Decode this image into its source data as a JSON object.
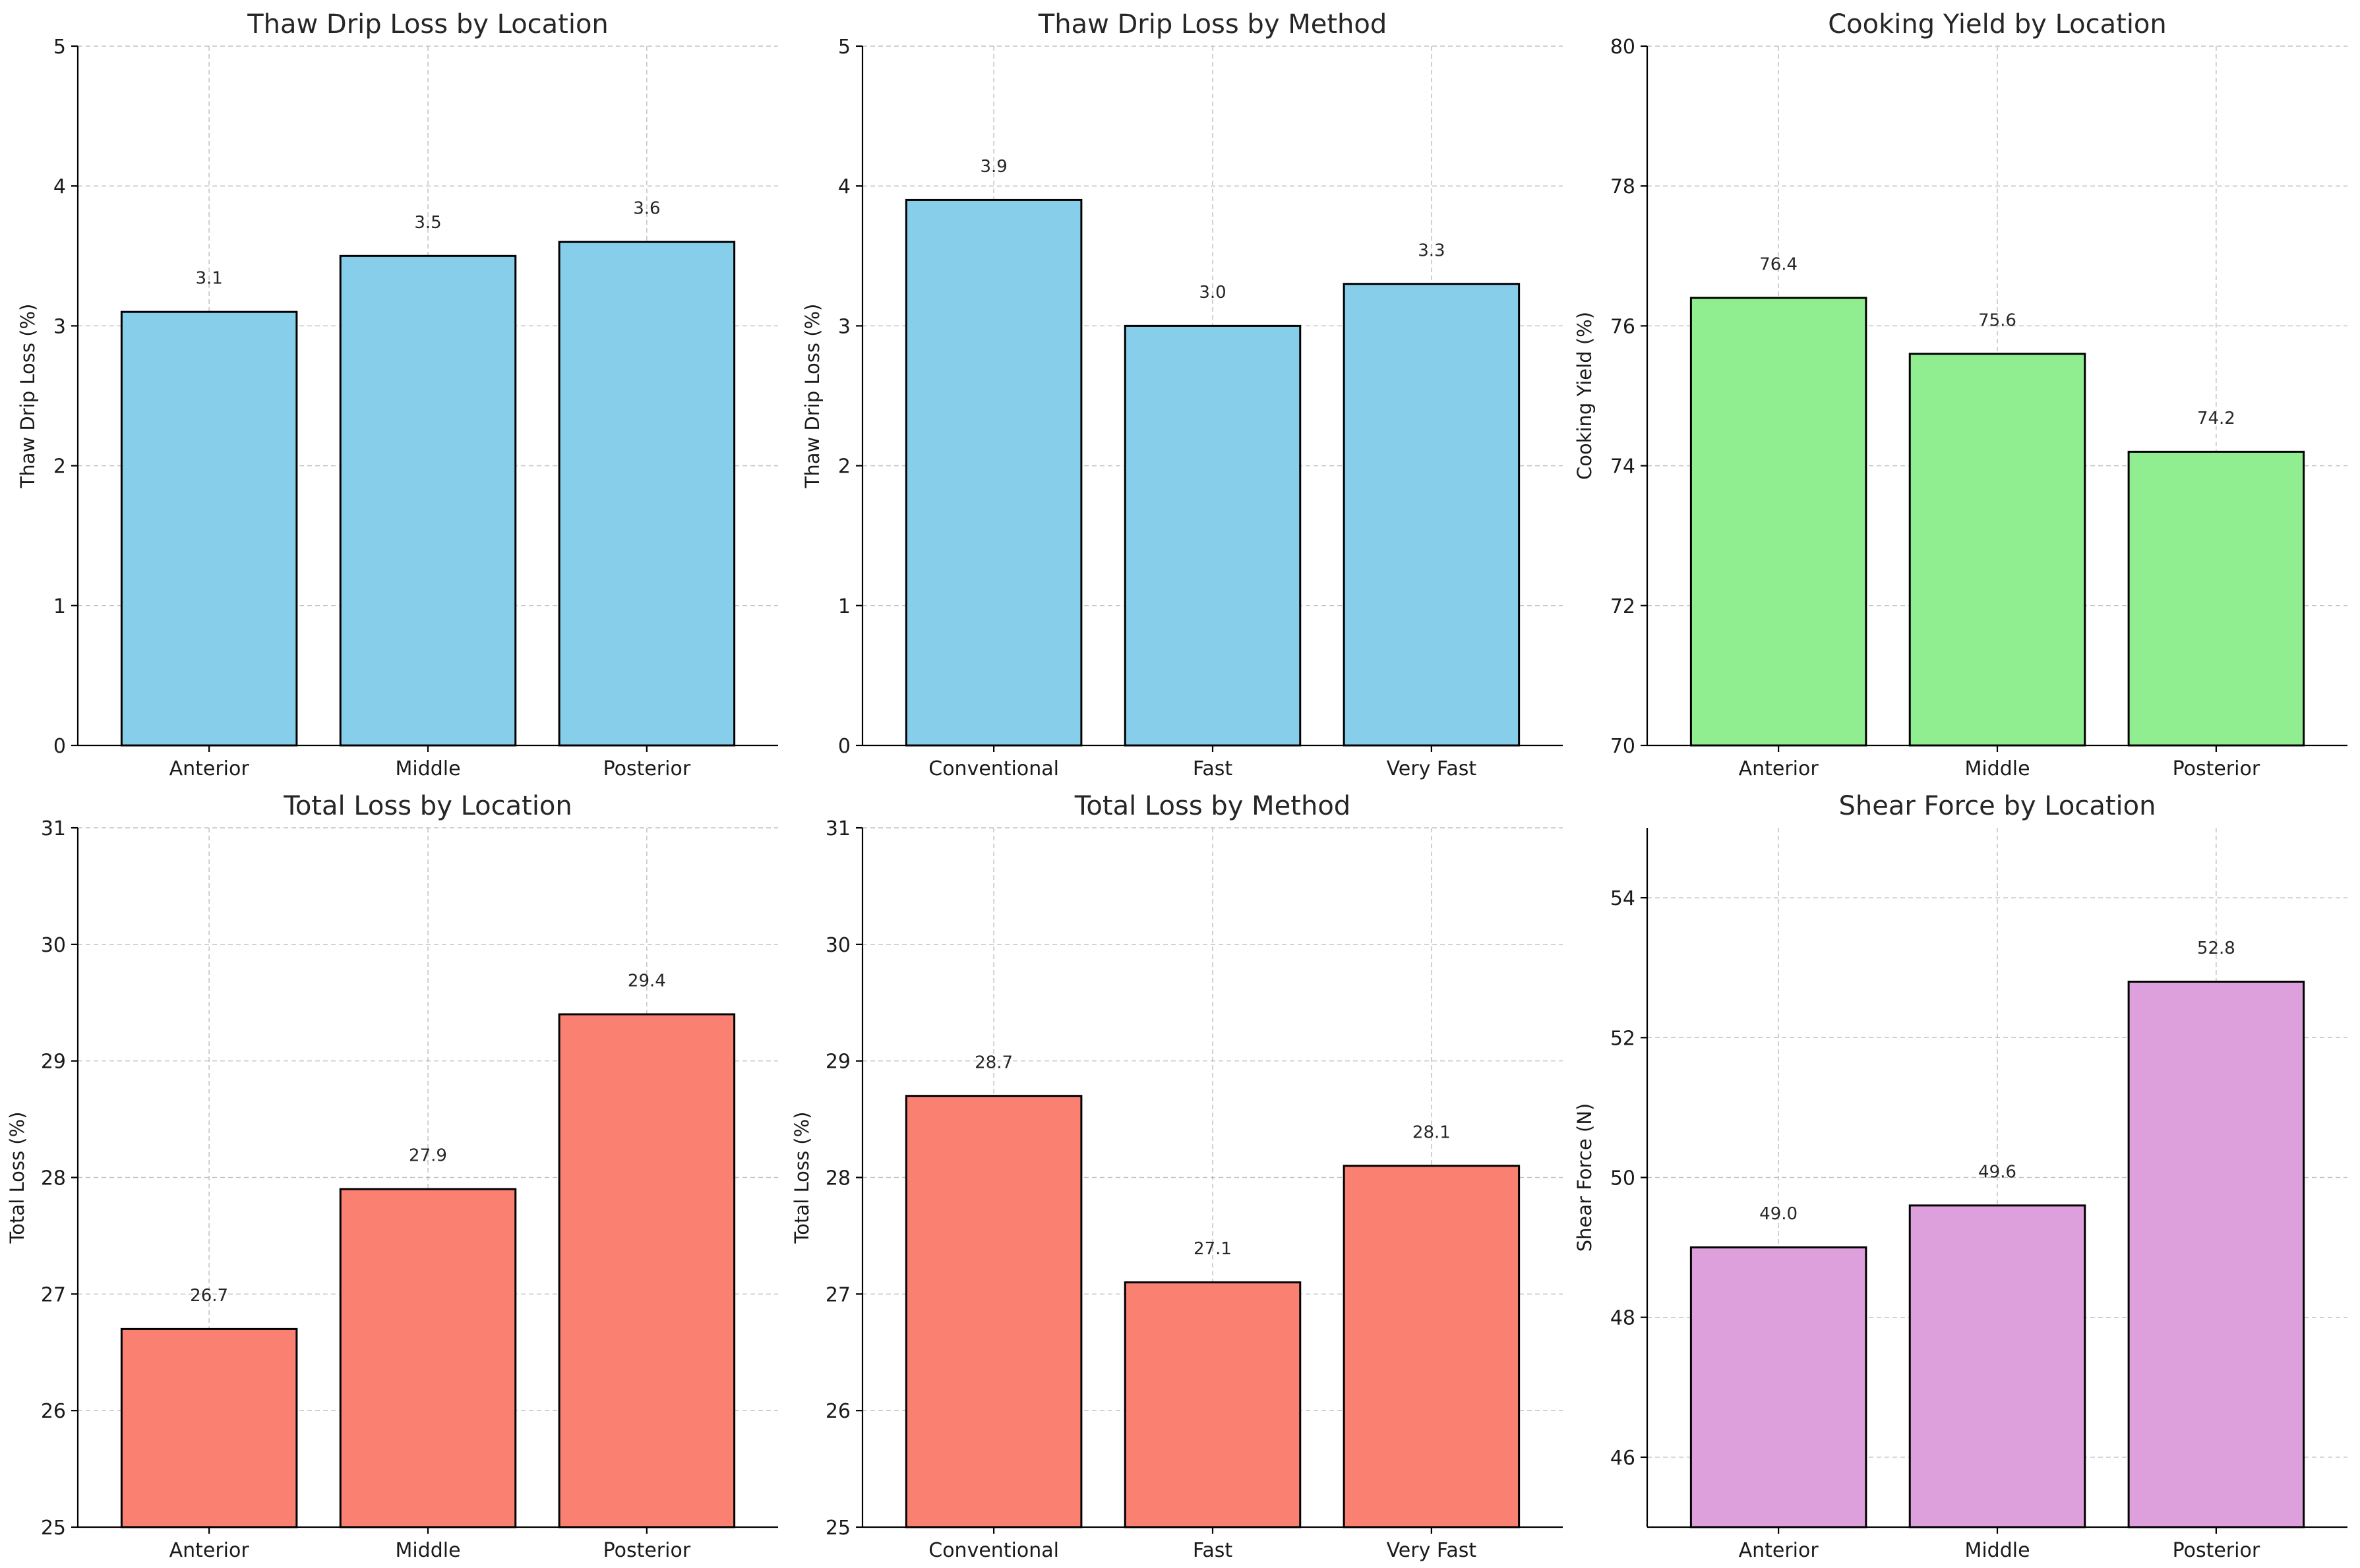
{
  "chart_data": [
    {
      "type": "bar",
      "title": "Thaw Drip Loss by Location",
      "xlabel": "",
      "ylabel": "Thaw Drip Loss (%)",
      "categories": [
        "Anterior",
        "Middle",
        "Posterior"
      ],
      "values": [
        3.1,
        3.5,
        3.6
      ],
      "value_labels": [
        "3.1",
        "3.5",
        "3.6"
      ],
      "ylim": [
        0,
        5
      ],
      "yticks": [
        0,
        1,
        2,
        3,
        4,
        5
      ],
      "ytick_labels": [
        "0",
        "1",
        "2",
        "3",
        "4",
        "5"
      ],
      "color": "#87ceeb",
      "grid": true
    },
    {
      "type": "bar",
      "title": "Thaw Drip Loss by Method",
      "xlabel": "",
      "ylabel": "Thaw Drip Loss (%)",
      "categories": [
        "Conventional",
        "Fast",
        "Very Fast"
      ],
      "values": [
        3.9,
        3.0,
        3.3
      ],
      "value_labels": [
        "3.9",
        "3.0",
        "3.3"
      ],
      "ylim": [
        0,
        5
      ],
      "yticks": [
        0,
        1,
        2,
        3,
        4,
        5
      ],
      "ytick_labels": [
        "0",
        "1",
        "2",
        "3",
        "4",
        "5"
      ],
      "color": "#87ceeb",
      "grid": true
    },
    {
      "type": "bar",
      "title": "Cooking Yield by Location",
      "xlabel": "",
      "ylabel": "Cooking Yield (%)",
      "categories": [
        "Anterior",
        "Middle",
        "Posterior"
      ],
      "values": [
        76.4,
        75.6,
        74.2
      ],
      "value_labels": [
        "76.4",
        "75.6",
        "74.2"
      ],
      "ylim": [
        70,
        80
      ],
      "yticks": [
        70,
        72,
        74,
        76,
        78,
        80
      ],
      "ytick_labels": [
        "70",
        "72",
        "74",
        "76",
        "78",
        "80"
      ],
      "color": "#90ee90",
      "grid": true
    },
    {
      "type": "bar",
      "title": "Total Loss by Location",
      "xlabel": "",
      "ylabel": "Total Loss (%)",
      "categories": [
        "Anterior",
        "Middle",
        "Posterior"
      ],
      "values": [
        26.7,
        27.9,
        29.4
      ],
      "value_labels": [
        "26.7",
        "27.9",
        "29.4"
      ],
      "ylim": [
        25,
        31
      ],
      "yticks": [
        25,
        26,
        27,
        28,
        29,
        30,
        31
      ],
      "ytick_labels": [
        "25",
        "26",
        "27",
        "28",
        "29",
        "30",
        "31"
      ],
      "color": "#fa8072",
      "grid": true
    },
    {
      "type": "bar",
      "title": "Total Loss by Method",
      "xlabel": "",
      "ylabel": "Total Loss (%)",
      "categories": [
        "Conventional",
        "Fast",
        "Very Fast"
      ],
      "values": [
        28.7,
        27.1,
        28.1
      ],
      "value_labels": [
        "28.7",
        "27.1",
        "28.1"
      ],
      "ylim": [
        25,
        31
      ],
      "yticks": [
        25,
        26,
        27,
        28,
        29,
        30,
        31
      ],
      "ytick_labels": [
        "25",
        "26",
        "27",
        "28",
        "29",
        "30",
        "31"
      ],
      "color": "#fa8072",
      "grid": true
    },
    {
      "type": "bar",
      "title": "Shear Force by Location",
      "xlabel": "",
      "ylabel": "Shear Force (N)",
      "categories": [
        "Anterior",
        "Middle",
        "Posterior"
      ],
      "values": [
        49.0,
        49.6,
        52.8
      ],
      "value_labels": [
        "49.0",
        "49.6",
        "52.8"
      ],
      "ylim": [
        45,
        55
      ],
      "yticks": [
        46,
        48,
        50,
        52,
        54
      ],
      "ytick_labels": [
        "46",
        "48",
        "50",
        "52",
        "54"
      ],
      "color": "#dda0dd",
      "grid": true
    }
  ]
}
